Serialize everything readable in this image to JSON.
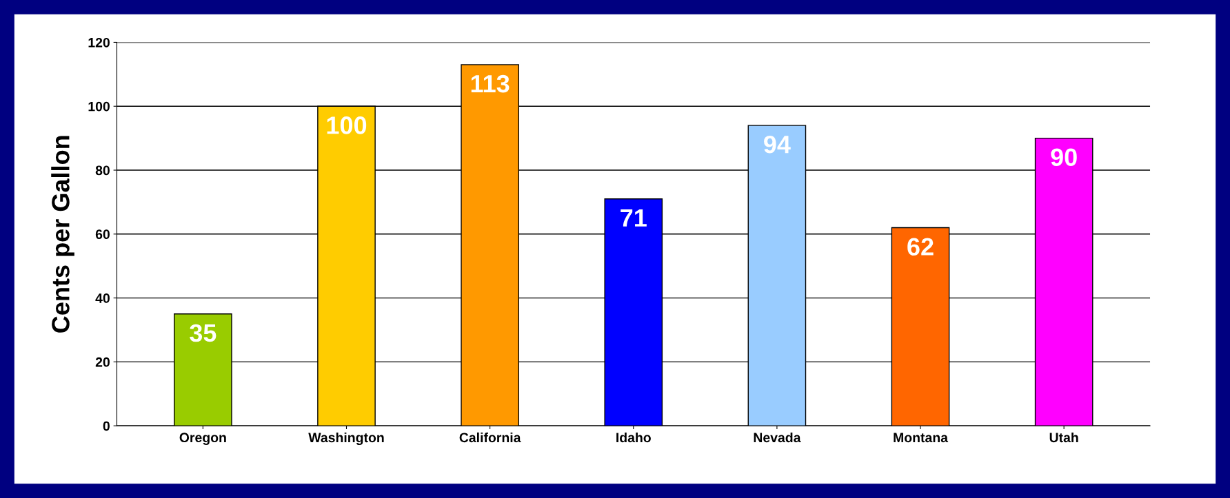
{
  "chart_data": {
    "type": "bar",
    "ylabel": "Cents per Gallon",
    "categories": [
      "Oregon",
      "Washington",
      "California",
      "Idaho",
      "Nevada",
      "Montana",
      "Utah"
    ],
    "values": [
      35,
      100,
      113,
      71,
      94,
      62,
      90
    ],
    "colors": [
      "#99cc00",
      "#ffcc00",
      "#ff9900",
      "#0000ff",
      "#99ccff",
      "#ff6600",
      "#ff00ff"
    ],
    "ylim": [
      0,
      120
    ],
    "yticks": [
      0,
      20,
      40,
      60,
      80,
      100,
      120
    ],
    "grid": "y",
    "data_labels": true
  }
}
